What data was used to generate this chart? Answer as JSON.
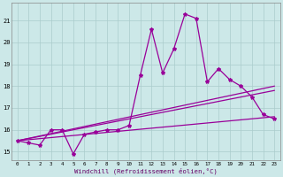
{
  "xlabel": "Windchill (Refroidissement éolien,°C)",
  "background_color": "#cce8e8",
  "grid_color": "#aacccc",
  "line_color": "#990099",
  "x_ticks": [
    0,
    1,
    2,
    3,
    4,
    5,
    6,
    7,
    8,
    9,
    10,
    11,
    12,
    13,
    14,
    15,
    16,
    17,
    18,
    19,
    20,
    21,
    22,
    23
  ],
  "ylim": [
    14.6,
    21.8
  ],
  "xlim": [
    -0.5,
    23.5
  ],
  "yticks": [
    15,
    16,
    17,
    18,
    19,
    20,
    21
  ],
  "series1_x": [
    0,
    1,
    2,
    3,
    4,
    5,
    6,
    7,
    8,
    9,
    10,
    11,
    12,
    13,
    14,
    15,
    16,
    17,
    18,
    19,
    20,
    21,
    22,
    23
  ],
  "series1_y": [
    15.5,
    15.4,
    15.3,
    16.0,
    16.0,
    14.9,
    15.8,
    15.9,
    16.0,
    16.0,
    16.2,
    18.5,
    20.6,
    18.6,
    19.7,
    21.3,
    21.1,
    18.2,
    18.8,
    18.3,
    18.0,
    17.5,
    16.7,
    16.5
  ],
  "series2_x": [
    0,
    23
  ],
  "series2_y": [
    15.5,
    16.6
  ],
  "series3_x": [
    0,
    23
  ],
  "series3_y": [
    15.5,
    17.8
  ],
  "series4_x": [
    0,
    23
  ],
  "series4_y": [
    15.5,
    18.0
  ]
}
